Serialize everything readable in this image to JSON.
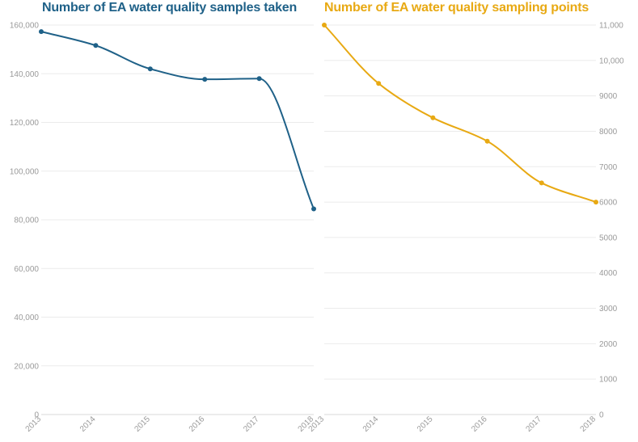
{
  "chart_data": [
    {
      "type": "line",
      "title": "Number of EA water quality samples taken",
      "color": "#1f6188",
      "x": [
        "2013",
        "2014",
        "2015",
        "2016",
        "2017",
        "2018"
      ],
      "values": [
        157300,
        151600,
        142000,
        137700,
        138000,
        84500
      ],
      "ylim": [
        0,
        160000
      ],
      "yticks": [
        0,
        20000,
        40000,
        60000,
        80000,
        100000,
        120000,
        140000,
        160000
      ],
      "ytick_labels": [
        "0",
        "20,000",
        "40,000",
        "60,000",
        "80,000",
        "100,000",
        "120,000",
        "140,000",
        "160,000"
      ],
      "yaxis_side": "left",
      "xlabel": "",
      "ylabel": ""
    },
    {
      "type": "line",
      "title": "Number of EA water quality sampling points",
      "color": "#e8a913",
      "x": [
        "2013",
        "2014",
        "2015",
        "2016",
        "2017",
        "2018"
      ],
      "values": [
        11000,
        9350,
        8380,
        7720,
        6540,
        6000
      ],
      "ylim": [
        0,
        11000
      ],
      "yticks": [
        0,
        1000,
        2000,
        3000,
        4000,
        5000,
        6000,
        7000,
        8000,
        9000,
        10000,
        11000
      ],
      "ytick_labels": [
        "0",
        "1000",
        "2000",
        "3000",
        "4000",
        "5000",
        "6000",
        "7000",
        "8000",
        "9000",
        "10,000",
        "11,000"
      ],
      "yaxis_side": "right",
      "xlabel": "",
      "ylabel": ""
    }
  ]
}
